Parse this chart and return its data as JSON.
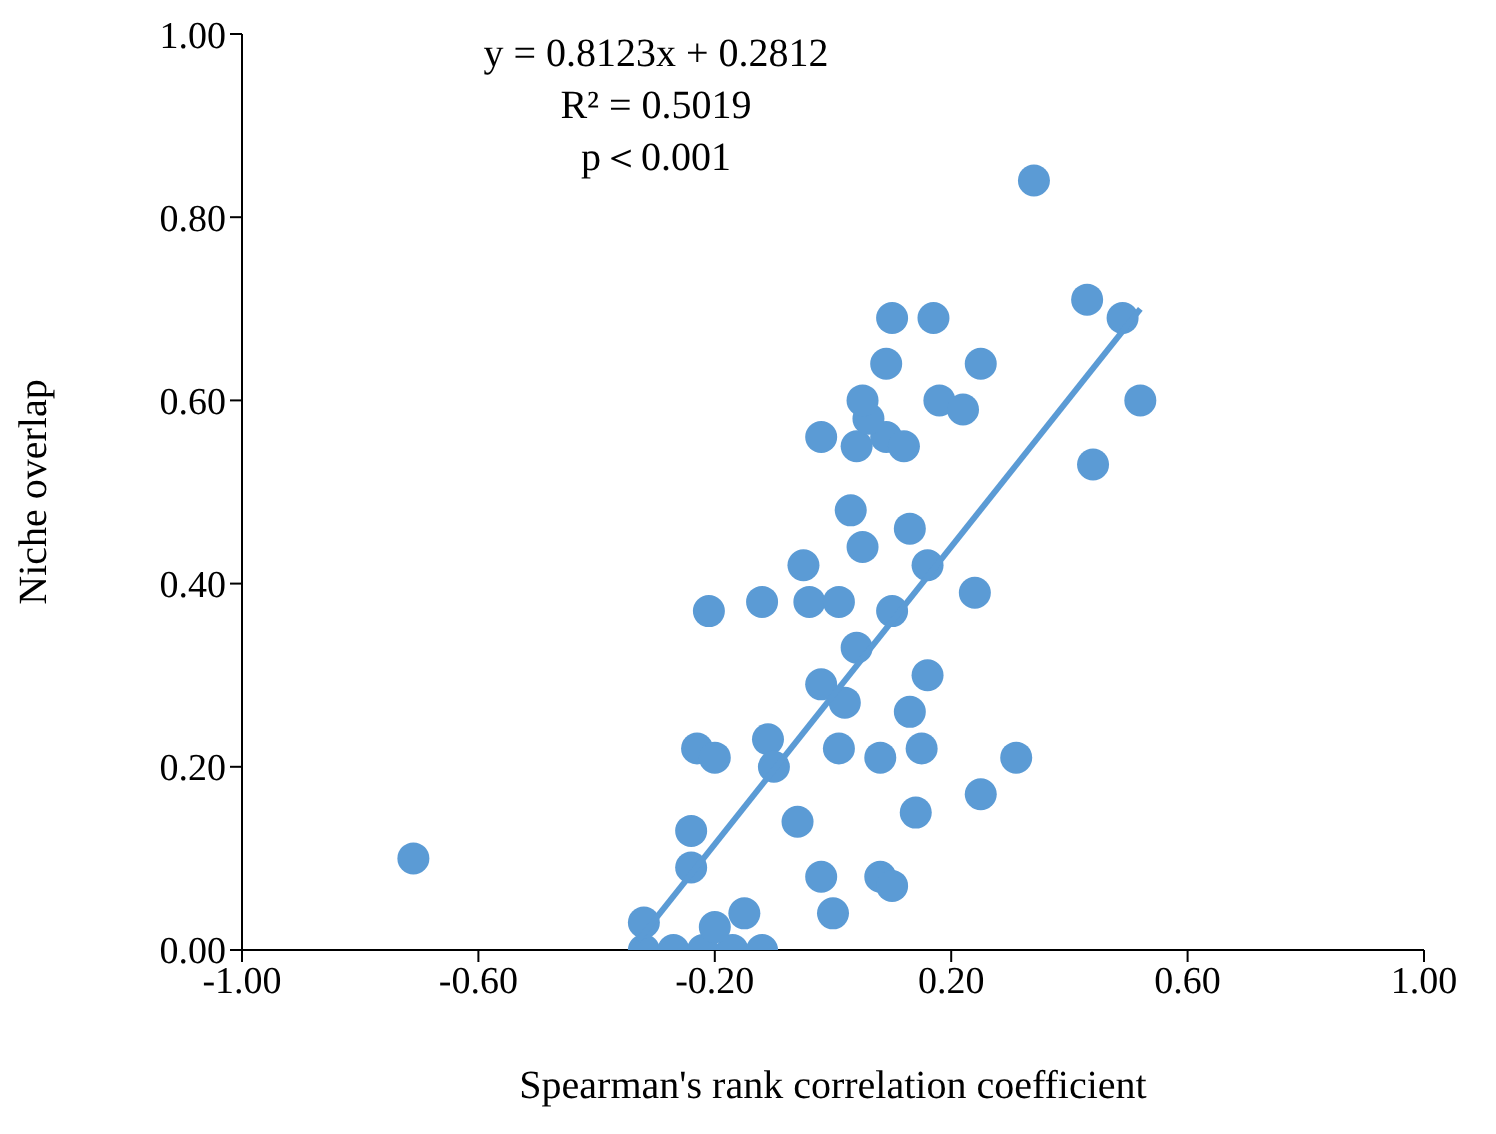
{
  "chart_data": {
    "type": "scatter",
    "xlabel": "Spearman's rank correlation coefficient",
    "ylabel": "Niche overlap",
    "annotations": [
      "y = 0.8123x + 0.2812",
      "R² = 0.5019",
      "p＜0.001"
    ],
    "xlim": [
      -1,
      1
    ],
    "xticks": [
      {
        "value": -1,
        "label": "-1.00"
      },
      {
        "value": -0.6,
        "label": "-0.60"
      },
      {
        "value": -0.2,
        "label": "-0.20"
      },
      {
        "value": 0.2,
        "label": "0.20"
      },
      {
        "value": 0.6,
        "label": "0.60"
      },
      {
        "value": 1,
        "label": "1.00"
      }
    ],
    "ylim": [
      0,
      1
    ],
    "yticks": [
      {
        "value": 0,
        "label": "0.00"
      },
      {
        "value": 0.2,
        "label": "0.20"
      },
      {
        "value": 0.4,
        "label": "0.40"
      },
      {
        "value": 0.6,
        "label": "0.60"
      },
      {
        "value": 0.8,
        "label": "0.80"
      },
      {
        "value": 1,
        "label": "1.00"
      }
    ],
    "grid": false,
    "legend": false,
    "marker": "circle",
    "series": [
      {
        "color": "#5b9bd5",
        "x": [
          -0.71,
          -0.32,
          -0.32,
          -0.27,
          -0.22,
          -0.17,
          -0.12,
          -0.2,
          -0.15,
          0.0,
          -0.24,
          -0.24,
          -0.02,
          0.08,
          0.1,
          -0.06,
          0.14,
          0.25,
          -0.23,
          -0.2,
          -0.11,
          -0.1,
          0.01,
          0.08,
          0.15,
          0.31,
          0.04,
          0.16,
          -0.02,
          0.02,
          0.13,
          -0.21,
          -0.12,
          -0.04,
          0.01,
          0.1,
          0.24,
          -0.05,
          0.16,
          0.03,
          0.13,
          0.05,
          0.44,
          -0.02,
          0.04,
          0.09,
          0.12,
          0.06,
          0.05,
          0.18,
          0.22,
          0.09,
          0.25,
          0.1,
          0.17,
          0.43,
          0.34,
          0.49,
          0.52
        ],
        "values": [
          0.1,
          0.0,
          0.03,
          0.0,
          0.0,
          0.0,
          0.0,
          0.025,
          0.04,
          0.04,
          0.13,
          0.09,
          0.08,
          0.08,
          0.07,
          0.14,
          0.15,
          0.17,
          0.22,
          0.21,
          0.23,
          0.2,
          0.22,
          0.21,
          0.22,
          0.21,
          0.33,
          0.3,
          0.29,
          0.27,
          0.26,
          0.37,
          0.38,
          0.38,
          0.38,
          0.37,
          0.39,
          0.42,
          0.42,
          0.48,
          0.46,
          0.44,
          0.53,
          0.56,
          0.55,
          0.56,
          0.55,
          0.58,
          0.6,
          0.6,
          0.59,
          0.64,
          0.64,
          0.69,
          0.69,
          0.71,
          0.84,
          0.69,
          0.6
        ]
      },
      {
        "type": "line",
        "marker": "none",
        "color": "#5b9bd5",
        "x": [
          -0.33,
          0.52
        ],
        "values": [
          0.01,
          0.7
        ]
      }
    ]
  }
}
